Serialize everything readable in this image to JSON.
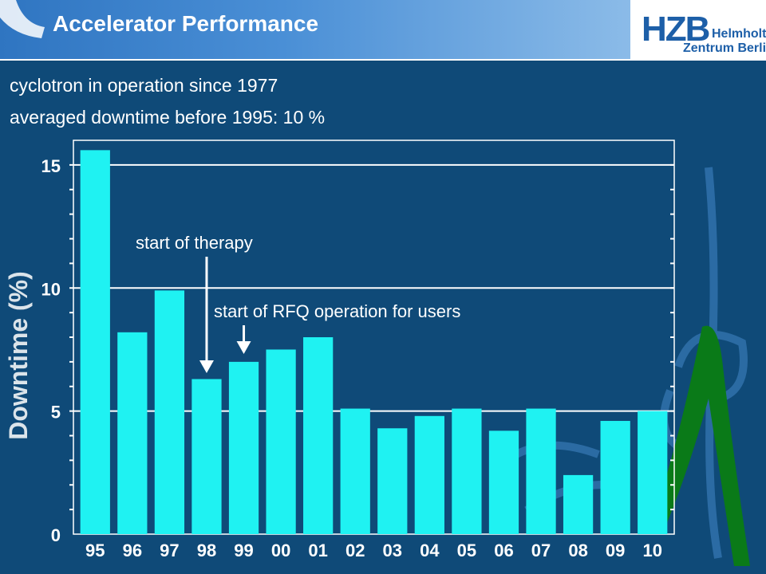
{
  "header": {
    "title": "Accelerator Performance",
    "logo": {
      "mark": "HZB",
      "line1": "Helmholtz",
      "line2": "Zentrum Berlin"
    }
  },
  "notes": [
    "cyclotron in operation since 1977",
    "averaged downtime before 1995: 10 %"
  ],
  "colors": {
    "background": "#0f4a78",
    "bar": "#1ff2f2",
    "text": "#ffffff",
    "grid": "#ffffff"
  },
  "chart_data": {
    "type": "bar",
    "title": "",
    "xlabel": "",
    "ylabel": "Downtime (%)",
    "ylim": [
      0,
      16
    ],
    "yticks": [
      0,
      5,
      10,
      15
    ],
    "categories": [
      "95",
      "96",
      "97",
      "98",
      "99",
      "00",
      "01",
      "02",
      "03",
      "04",
      "05",
      "06",
      "07",
      "08",
      "09",
      "10"
    ],
    "values": [
      15.6,
      8.2,
      9.9,
      6.3,
      7.0,
      7.5,
      8.0,
      5.1,
      4.3,
      4.8,
      5.1,
      4.2,
      5.1,
      2.4,
      4.6,
      5.0
    ],
    "annotations": [
      {
        "text": "start of therapy",
        "category": "98"
      },
      {
        "text": "start of RFQ operation for users",
        "category": "99"
      }
    ],
    "grid": true
  }
}
